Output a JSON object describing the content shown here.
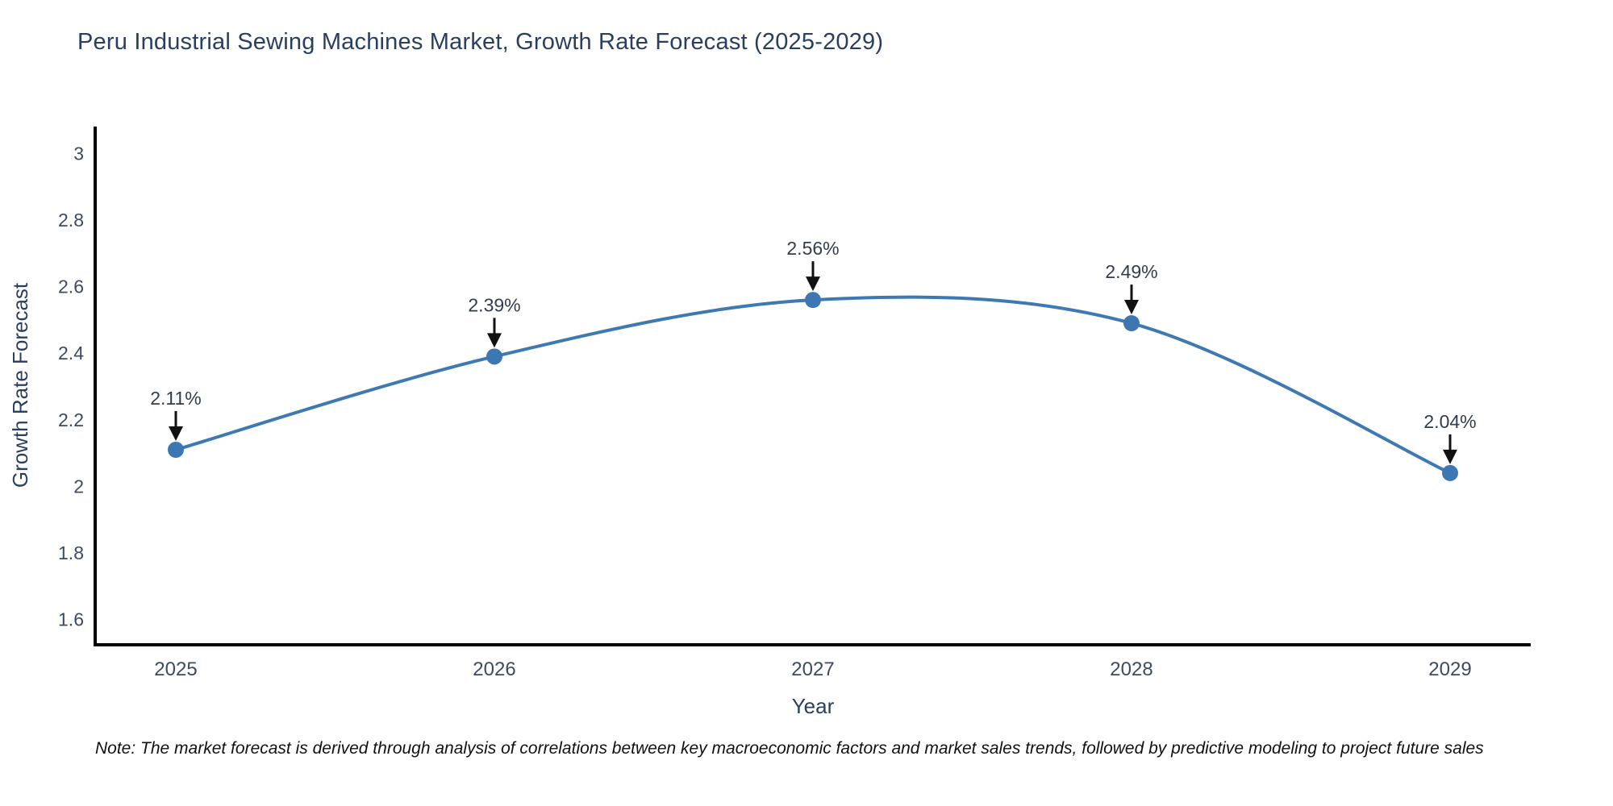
{
  "title": "Peru Industrial Sewing Machines Market, Growth Rate Forecast (2025-2029)",
  "footnote": "Note: The market forecast is derived through analysis of correlations between key macroeconomic factors and market sales trends, followed by predictive modeling to project future sales",
  "chart_data": {
    "type": "line",
    "line_shape": "spline",
    "title": "Peru Industrial Sewing Machines Market, Growth Rate Forecast (2025-2029)",
    "xlabel": "Year",
    "ylabel": "Growth Rate Forecast",
    "x": [
      2025,
      2026,
      2027,
      2028,
      2029
    ],
    "y": [
      2.11,
      2.39,
      2.56,
      2.49,
      2.04
    ],
    "point_labels": [
      "2.11%",
      "2.39%",
      "2.56%",
      "2.49%",
      "2.04%"
    ],
    "xticks": [
      2025,
      2026,
      2027,
      2028,
      2029
    ],
    "yticks": [
      1.6,
      1.8,
      2,
      2.2,
      2.4,
      2.6,
      2.8,
      3
    ],
    "ylim": [
      1.52,
      3.08
    ],
    "xlim": [
      2024.75,
      2029.25
    ],
    "grid": false,
    "legend": "none",
    "annotation_arrows": true,
    "colors": {
      "line": "#3f79b2",
      "marker": "#3c77b3",
      "axis": "#000000",
      "title_text": "#2a3f5f",
      "axis_title_text": "#2a3f5f",
      "tick_text": "#3e4a61",
      "annotation_text": "#333c4a",
      "arrow": "#111111",
      "note_text": "#111111",
      "background": "#ffffff"
    }
  }
}
